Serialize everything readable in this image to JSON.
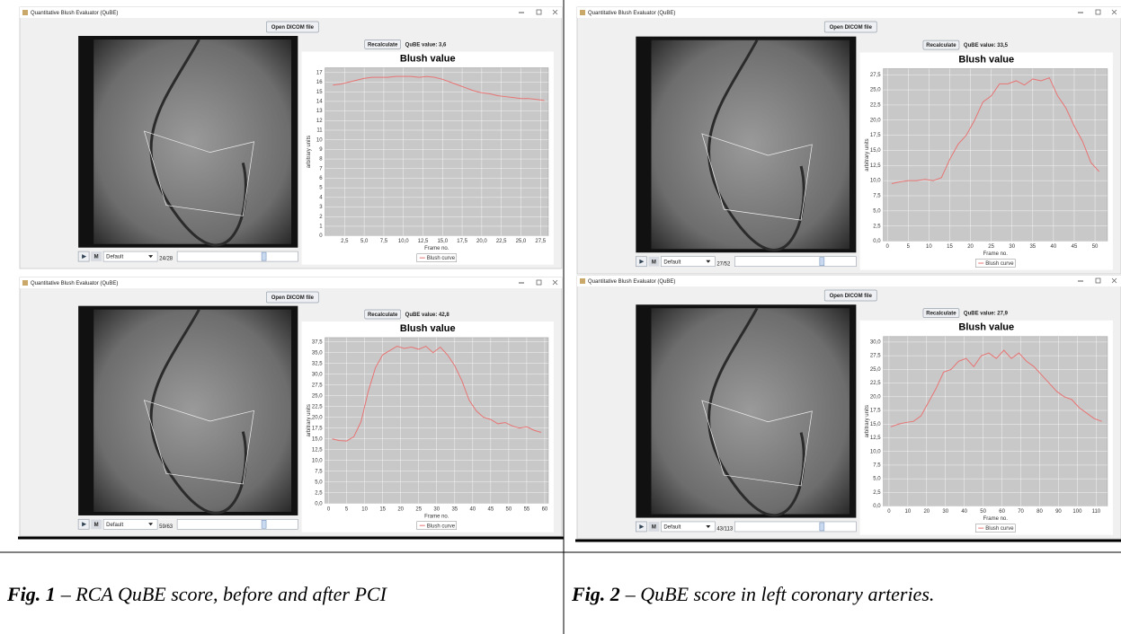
{
  "panels": [
    {
      "window_title": "Quantitative Blush Evaluator (QuBE)",
      "open_button": "Open DICOM file",
      "recalc_button": "Recalculate",
      "qube_value": "QuBE value: 3,6",
      "mode": "M",
      "preset": "Default",
      "frame": "24/28"
    },
    {
      "window_title": "Quantitative Blush Evaluator (QuBE)",
      "open_button": "Open DICOM file",
      "recalc_button": "Recalculate",
      "qube_value": "QuBE value: 42,8",
      "mode": "M",
      "preset": "Default",
      "frame": "59/63"
    },
    {
      "window_title": "Quantitative Blush Evaluator (QuBE)",
      "open_button": "Open DICOM file",
      "recalc_button": "Recalculate",
      "qube_value": "QuBE value: 33,5",
      "mode": "M",
      "preset": "Default",
      "frame": "27/52"
    },
    {
      "window_title": "Quantitative Blush Evaluator (QuBE)",
      "open_button": "Open DICOM file",
      "recalc_button": "Recalculate",
      "qube_value": "QuBE value: 27,9",
      "mode": "M",
      "preset": "Default",
      "frame": "43/113"
    }
  ],
  "chart_data": [
    {
      "type": "line",
      "title": "Blush value",
      "xlabel": "Frame no.",
      "ylabel": "arbitrary units",
      "grid": true,
      "x": [
        1,
        2,
        3,
        4,
        5,
        6,
        7,
        8,
        9,
        10,
        11,
        12,
        13,
        14,
        15,
        16,
        17,
        18,
        19,
        20,
        21,
        22,
        23,
        24,
        25,
        26,
        27,
        28
      ],
      "series": [
        {
          "name": "Blush curve",
          "color": "#e87474",
          "values": [
            15.7,
            15.8,
            16.0,
            16.2,
            16.4,
            16.5,
            16.5,
            16.5,
            16.6,
            16.6,
            16.6,
            16.5,
            16.6,
            16.5,
            16.3,
            16.0,
            15.7,
            15.4,
            15.1,
            14.9,
            14.8,
            14.6,
            14.5,
            14.4,
            14.3,
            14.3,
            14.2,
            14.1
          ]
        }
      ],
      "xlim": [
        0,
        28.5
      ],
      "ylim": [
        0,
        17.5
      ],
      "xticks": [
        {
          "value": 2.5,
          "label": "2,5"
        },
        {
          "value": 5,
          "label": "5,0"
        },
        {
          "value": 7.5,
          "label": "7,5"
        },
        {
          "value": 10,
          "label": "10,0"
        },
        {
          "value": 12.5,
          "label": "12,5"
        },
        {
          "value": 15,
          "label": "15,0"
        },
        {
          "value": 17.5,
          "label": "17,5"
        },
        {
          "value": 20,
          "label": "20,0"
        },
        {
          "value": 22.5,
          "label": "22,5"
        },
        {
          "value": 25,
          "label": "25,0"
        },
        {
          "value": 27.5,
          "label": "27,5"
        }
      ],
      "yticks": [
        0,
        1,
        2,
        3,
        4,
        5,
        6,
        7,
        8,
        9,
        10,
        11,
        12,
        13,
        14,
        15,
        16,
        17
      ]
    },
    {
      "type": "line",
      "title": "Blush value",
      "xlabel": "Frame no.",
      "ylabel": "arbitrary units",
      "grid": true,
      "x": [
        1,
        3,
        5,
        7,
        9,
        11,
        13,
        15,
        17,
        19,
        21,
        23,
        25,
        27,
        29,
        31,
        33,
        35,
        37,
        39,
        41,
        43,
        45,
        47,
        49,
        51,
        53,
        55,
        57,
        59
      ],
      "series": [
        {
          "name": "Blush curve",
          "color": "#e87474",
          "values": [
            15.0,
            14.6,
            14.5,
            15.5,
            19.0,
            26.0,
            31.5,
            34.5,
            35.5,
            36.5,
            36.0,
            36.3,
            35.8,
            36.5,
            35.0,
            36.3,
            34.5,
            32.0,
            28.5,
            24.0,
            21.5,
            20.0,
            19.5,
            18.5,
            18.8,
            18.0,
            17.5,
            17.8,
            17.0,
            16.5
          ]
        }
      ],
      "xlim": [
        -1,
        61
      ],
      "ylim": [
        0,
        38.5
      ],
      "xticks": [
        0,
        5,
        10,
        15,
        20,
        25,
        30,
        35,
        40,
        45,
        50,
        55,
        60
      ],
      "yticks": [
        {
          "value": 0,
          "label": "0,0"
        },
        {
          "value": 2.5,
          "label": "2,5"
        },
        {
          "value": 5,
          "label": "5,0"
        },
        {
          "value": 7.5,
          "label": "7,5"
        },
        {
          "value": 10,
          "label": "10,0"
        },
        {
          "value": 12.5,
          "label": "12,5"
        },
        {
          "value": 15,
          "label": "15,0"
        },
        {
          "value": 17.5,
          "label": "17,5"
        },
        {
          "value": 20,
          "label": "20,0"
        },
        {
          "value": 22.5,
          "label": "22,5"
        },
        {
          "value": 25,
          "label": "25,0"
        },
        {
          "value": 27.5,
          "label": "27,5"
        },
        {
          "value": 30,
          "label": "30,0"
        },
        {
          "value": 32.5,
          "label": "32,5"
        },
        {
          "value": 35,
          "label": "35,0"
        },
        {
          "value": 37.5,
          "label": "37,5"
        }
      ]
    },
    {
      "type": "line",
      "title": "Blush value",
      "xlabel": "Frame no.",
      "ylabel": "arbitrary units",
      "grid": true,
      "x": [
        1,
        3,
        5,
        7,
        9,
        11,
        13,
        15,
        17,
        19,
        21,
        23,
        25,
        27,
        29,
        31,
        33,
        35,
        37,
        39,
        41,
        43,
        45,
        47,
        49,
        51
      ],
      "series": [
        {
          "name": "Blush curve",
          "color": "#e87474",
          "values": [
            9.5,
            9.8,
            10.0,
            10.0,
            10.2,
            10.0,
            10.5,
            13.5,
            16.0,
            17.5,
            20.0,
            23.0,
            24.0,
            26.0,
            26.0,
            26.5,
            25.8,
            26.8,
            26.5,
            27.0,
            24.0,
            22.0,
            19.0,
            16.5,
            13.0,
            11.5
          ]
        }
      ],
      "xlim": [
        -1,
        53
      ],
      "ylim": [
        0,
        28.5
      ],
      "xticks": [
        0,
        5,
        10,
        15,
        20,
        25,
        30,
        35,
        40,
        45,
        50
      ],
      "yticks": [
        {
          "value": 0,
          "label": "0,0"
        },
        {
          "value": 2.5,
          "label": "2,5"
        },
        {
          "value": 5,
          "label": "5,0"
        },
        {
          "value": 7.5,
          "label": "7,5"
        },
        {
          "value": 10,
          "label": "10,0"
        },
        {
          "value": 12.5,
          "label": "12,5"
        },
        {
          "value": 15,
          "label": "15,0"
        },
        {
          "value": 17.5,
          "label": "17,5"
        },
        {
          "value": 20,
          "label": "20,0"
        },
        {
          "value": 22.5,
          "label": "22,5"
        },
        {
          "value": 25,
          "label": "25,0"
        },
        {
          "value": 27.5,
          "label": "27,5"
        }
      ]
    },
    {
      "type": "line",
      "title": "Blush value",
      "xlabel": "Frame no.",
      "ylabel": "arbitrary units",
      "grid": true,
      "x": [
        1,
        5,
        9,
        13,
        17,
        21,
        25,
        29,
        33,
        37,
        41,
        45,
        49,
        53,
        57,
        61,
        65,
        69,
        73,
        77,
        81,
        85,
        89,
        93,
        97,
        101,
        105,
        109,
        113
      ],
      "series": [
        {
          "name": "Blush curve",
          "color": "#e87474",
          "values": [
            14.5,
            15.0,
            15.3,
            15.5,
            16.5,
            19.0,
            21.5,
            24.5,
            25.0,
            26.5,
            27.0,
            25.5,
            27.5,
            28.0,
            27.0,
            28.5,
            27.0,
            28.0,
            26.5,
            25.5,
            24.0,
            22.5,
            21.0,
            20.0,
            19.5,
            18.0,
            17.0,
            16.0,
            15.5
          ]
        }
      ],
      "xlim": [
        -3,
        116
      ],
      "ylim": [
        0,
        31
      ],
      "xticks": [
        0,
        10,
        20,
        30,
        40,
        50,
        60,
        70,
        80,
        90,
        100,
        110
      ],
      "yticks": [
        {
          "value": 0,
          "label": "0,0"
        },
        {
          "value": 2.5,
          "label": "2,5"
        },
        {
          "value": 5,
          "label": "5,0"
        },
        {
          "value": 7.5,
          "label": "7,5"
        },
        {
          "value": 10,
          "label": "10,0"
        },
        {
          "value": 12.5,
          "label": "12,5"
        },
        {
          "value": 15,
          "label": "15,0"
        },
        {
          "value": 17.5,
          "label": "17,5"
        },
        {
          "value": 20,
          "label": "20,0"
        },
        {
          "value": 22.5,
          "label": "22,5"
        },
        {
          "value": 25,
          "label": "25,0"
        },
        {
          "value": 27.5,
          "label": "27,5"
        },
        {
          "value": 30,
          "label": "30,0"
        }
      ]
    }
  ],
  "captions": [
    {
      "label": "Fig. 1",
      "text": "– RCA QuBE score, before and after PCI"
    },
    {
      "label": "Fig. 2",
      "text": "– QuBE score in left coronary arteries."
    }
  ]
}
